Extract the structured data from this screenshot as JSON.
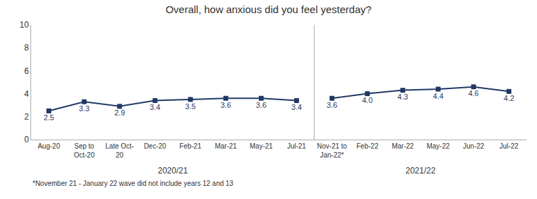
{
  "chart_data": {
    "type": "line",
    "title": "Overall, how anxious did you feel yesterday?",
    "categories": [
      "Aug-20",
      "Sep to\nOct-20",
      "Late Oct-\n20",
      "Dec-20",
      "Feb-21",
      "Mar-21",
      "May-21",
      "Jul-21",
      "Nov-21 to\nJan-22*",
      "Feb-22",
      "Mar-22",
      "May-22",
      "Jun-22",
      "Jul-22"
    ],
    "series": [
      {
        "color": "#1F3864",
        "marker": "square",
        "values": [
          2.5,
          3.3,
          2.9,
          3.4,
          3.5,
          3.6,
          3.6,
          3.4,
          null,
          null,
          null,
          null,
          null,
          null
        ],
        "value_labels": [
          "2.5",
          "3.3",
          "2.9",
          "3.4",
          "3.5",
          "3.6",
          "3.6",
          "3.4",
          null,
          null,
          null,
          null,
          null,
          null
        ]
      },
      {
        "color": "#1F3864",
        "marker": "square",
        "values": [
          null,
          null,
          null,
          null,
          null,
          null,
          null,
          null,
          3.6,
          4.0,
          4.3,
          4.4,
          4.6,
          4.2
        ],
        "value_labels": [
          null,
          null,
          null,
          null,
          null,
          null,
          null,
          null,
          "3.6",
          "4.0",
          "4.3",
          "4.4",
          "4.6",
          "4.2"
        ]
      }
    ],
    "annotations": [
      "2020/21",
      "2021/22",
      "*November 21 - January 22 wave did not include years 12 and 13"
    ],
    "ylim": [
      0,
      10
    ],
    "yticks": [
      0,
      2,
      4,
      6,
      8,
      10
    ],
    "grid": false,
    "data_labels": true
  }
}
